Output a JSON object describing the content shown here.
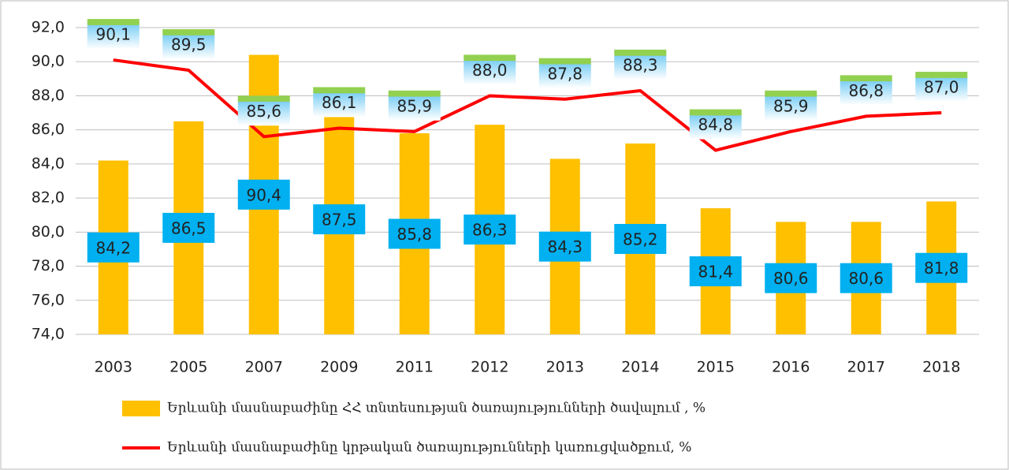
{
  "chart_data": {
    "type": "bar",
    "categories": [
      "2003",
      "2005",
      "2007",
      "2009",
      "2011",
      "2012",
      "2013",
      "2014",
      "2015",
      "2016",
      "2017",
      "2018"
    ],
    "series": [
      {
        "name": "Երևանի մասնաբաժինը ՀՀ տնտեսության ծառայությունների ծավալում , %",
        "type": "bar",
        "color": "#ffc000",
        "values": [
          84.2,
          86.5,
          90.4,
          87.5,
          85.8,
          86.3,
          84.3,
          85.2,
          81.4,
          80.6,
          80.6,
          81.8
        ],
        "value_labels": [
          "84,2",
          "86,5",
          "90,4",
          "87,5",
          "85,8",
          "86,3",
          "84,3",
          "85,2",
          "81,4",
          "80,6",
          "80,6",
          "81,8"
        ]
      },
      {
        "name": "Երևանի մասնաբաժինը կրթական ծառայությունների կառուցվածքում, %",
        "type": "line",
        "color": "#ff0000",
        "values": [
          90.1,
          89.5,
          85.6,
          86.1,
          85.9,
          88.0,
          87.8,
          88.3,
          84.8,
          85.9,
          86.8,
          87.0
        ],
        "value_labels": [
          "90,1",
          "89,5",
          "85,6",
          "86,1",
          "85,9",
          "88,0",
          "87,8",
          "88,3",
          "84,8",
          "85,9",
          "86,8",
          "87,0"
        ]
      }
    ],
    "ylim": [
      74,
      92
    ],
    "yticks": [
      {
        "value": 74,
        "label": "74,0"
      },
      {
        "value": 76,
        "label": "76,0"
      },
      {
        "value": 78,
        "label": "78,0"
      },
      {
        "value": 80,
        "label": "80,0"
      },
      {
        "value": 82,
        "label": "82,0"
      },
      {
        "value": 84,
        "label": "84,0"
      },
      {
        "value": 86,
        "label": "86,0"
      },
      {
        "value": 88,
        "label": "88,0"
      },
      {
        "value": 90,
        "label": "90,0"
      },
      {
        "value": 92,
        "label": "92,0"
      }
    ],
    "grid": true
  }
}
